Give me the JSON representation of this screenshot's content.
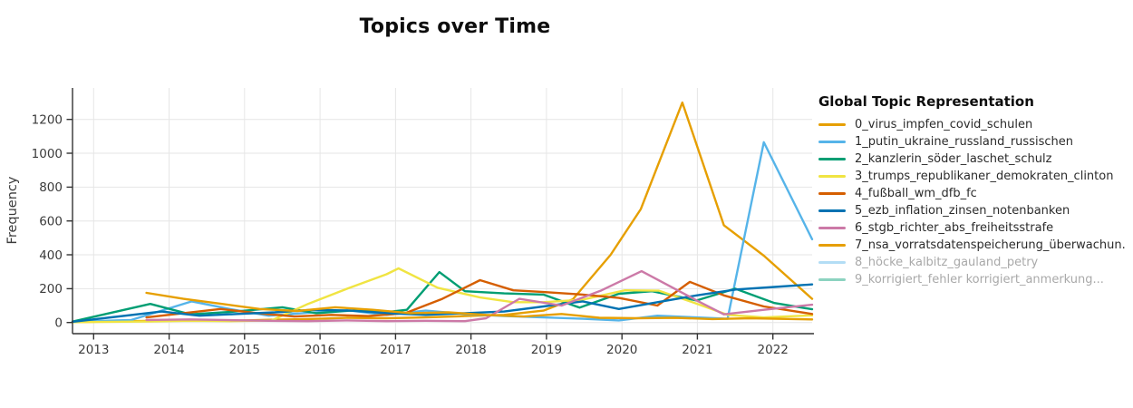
{
  "chart_data": {
    "type": "line",
    "title": "Topics over Time",
    "xlabel": "",
    "ylabel": "Frequency",
    "legend_title": "Global Topic Representation",
    "legend_position": "right",
    "grid": true,
    "xlim": [
      2012.72,
      2022.52
    ],
    "ylim": [
      -66,
      1386
    ],
    "x_ticks": [
      2013,
      2014,
      2015,
      2016,
      2017,
      2018,
      2019,
      2020,
      2021,
      2022
    ],
    "y_ticks": [
      0,
      200,
      400,
      600,
      800,
      1000,
      1200
    ],
    "colors": {
      "grid": "#e6e6e6",
      "axis": "#333333",
      "tick_text": "#3b3b3b",
      "legend_text": "#2b2b2b",
      "legend_text_hidden": "#a9a9a9",
      "background": "#ffffff"
    },
    "series": [
      {
        "name": "0_virus_impfen_covid_schulen",
        "color": "#E69F00",
        "hidden": false,
        "x": [
          2012.72,
          2013.24,
          2013.76,
          2014.28,
          2014.8,
          2015.32,
          2015.84,
          2016.36,
          2016.88,
          2017.4,
          2017.92,
          2018.44,
          2018.96,
          2019.35,
          2019.85,
          2020.25,
          2020.8,
          2021.35,
          2021.88,
          2022.52
        ],
        "y": [
          2,
          6,
          10,
          14,
          10,
          16,
          20,
          28,
          25,
          30,
          38,
          45,
          70,
          137,
          400,
          670,
          1300,
          575,
          395,
          140
        ]
      },
      {
        "name": "1_putin_ukraine_russland_russischen",
        "color": "#56B4E9",
        "hidden": false,
        "x": [
          2012.72,
          2013.5,
          2014.3,
          2014.82,
          2015.32,
          2015.84,
          2016.36,
          2016.88,
          2017.4,
          2017.92,
          2018.44,
          2018.96,
          2019.48,
          2019.96,
          2020.47,
          2020.99,
          2021.4,
          2021.88,
          2022.52
        ],
        "y": [
          3,
          15,
          125,
          78,
          40,
          58,
          72,
          45,
          70,
          50,
          38,
          30,
          22,
          12,
          40,
          30,
          22,
          1065,
          492
        ]
      },
      {
        "name": "2_kanzlerin_söder_laschet_schulz",
        "color": "#009E73",
        "hidden": false,
        "x": [
          2012.72,
          2013.75,
          2014.28,
          2014.8,
          2015.5,
          2015.95,
          2016.4,
          2016.9,
          2017.15,
          2017.58,
          2017.92,
          2018.44,
          2018.96,
          2019.44,
          2019.96,
          2020.4,
          2020.99,
          2021.5,
          2022.02,
          2022.52
        ],
        "y": [
          5,
          110,
          48,
          62,
          90,
          55,
          70,
          62,
          75,
          298,
          185,
          172,
          165,
          88,
          170,
          185,
          130,
          200,
          115,
          78
        ]
      },
      {
        "name": "3_trumps_republikaner_demokraten_clinton",
        "color": "#F0E442",
        "hidden": false,
        "x": [
          2012.72,
          2013.75,
          2014.28,
          2014.8,
          2015.36,
          2015.84,
          2016.36,
          2016.88,
          2017.04,
          2017.56,
          2018.12,
          2018.56,
          2018.96,
          2019.48,
          2020.04,
          2020.49,
          2021.0,
          2021.4,
          2021.88,
          2022.52
        ],
        "y": [
          2,
          6,
          10,
          8,
          12,
          110,
          200,
          285,
          320,
          205,
          148,
          120,
          120,
          135,
          190,
          188,
          110,
          45,
          30,
          42
        ]
      },
      {
        "name": "4_fußball_wm_dfb_fc",
        "color": "#D55E00",
        "hidden": false,
        "x": [
          2013.7,
          2014.19,
          2014.68,
          2015.17,
          2015.66,
          2016.15,
          2016.64,
          2017.13,
          2017.62,
          2018.12,
          2018.56,
          2018.96,
          2019.48,
          2019.96,
          2020.47,
          2020.9,
          2021.35,
          2021.88,
          2022.52
        ],
        "y": [
          30,
          55,
          80,
          55,
          35,
          45,
          38,
          55,
          140,
          250,
          190,
          180,
          165,
          145,
          100,
          240,
          160,
          95,
          50
        ]
      },
      {
        "name": "5_ezb_inflation_zinsen_notenbanken",
        "color": "#0072B2",
        "hidden": false,
        "x": [
          2012.72,
          2013.9,
          2014.4,
          2014.9,
          2015.4,
          2015.9,
          2016.4,
          2016.9,
          2017.4,
          2017.92,
          2018.44,
          2018.96,
          2019.48,
          2019.96,
          2020.47,
          2020.99,
          2021.51,
          2022.02,
          2022.52
        ],
        "y": [
          4,
          65,
          40,
          50,
          60,
          75,
          70,
          55,
          45,
          55,
          65,
          95,
          125,
          80,
          120,
          160,
          195,
          210,
          225
        ]
      },
      {
        "name": "6_stgb_richter_abs_freiheitsstrafe",
        "color": "#CC79A7",
        "hidden": false,
        "x": [
          2013.7,
          2014.28,
          2014.8,
          2015.32,
          2015.84,
          2016.36,
          2016.88,
          2017.4,
          2017.92,
          2018.2,
          2018.64,
          2019.2,
          2019.73,
          2020.26,
          2021.0,
          2021.35,
          2021.88,
          2022.52
        ],
        "y": [
          15,
          18,
          14,
          10,
          8,
          12,
          8,
          10,
          8,
          25,
          140,
          100,
          190,
          303,
          128,
          48,
          75,
          105
        ]
      },
      {
        "name": "7_nsa_vorratsdatenspeicherung_überwachun.",
        "color": "#E69F00",
        "hidden": false,
        "x": [
          2013.7,
          2014.19,
          2014.7,
          2015.2,
          2015.7,
          2016.2,
          2016.7,
          2017.2,
          2017.7,
          2018.2,
          2018.7,
          2019.2,
          2019.7,
          2020.2,
          2020.7,
          2021.2,
          2021.7,
          2022.52
        ],
        "y": [
          175,
          140,
          110,
          80,
          68,
          90,
          75,
          55,
          60,
          45,
          35,
          50,
          28,
          25,
          28,
          20,
          25,
          18
        ]
      },
      {
        "name": "8_höcke_kalbitz_gauland_petry",
        "color": "#56B4E9",
        "hidden": true,
        "x": [],
        "y": []
      },
      {
        "name": "9_korrigiert_fehler korrigiert_anmerkung...",
        "color": "#009E73",
        "hidden": true,
        "x": [],
        "y": []
      }
    ]
  }
}
